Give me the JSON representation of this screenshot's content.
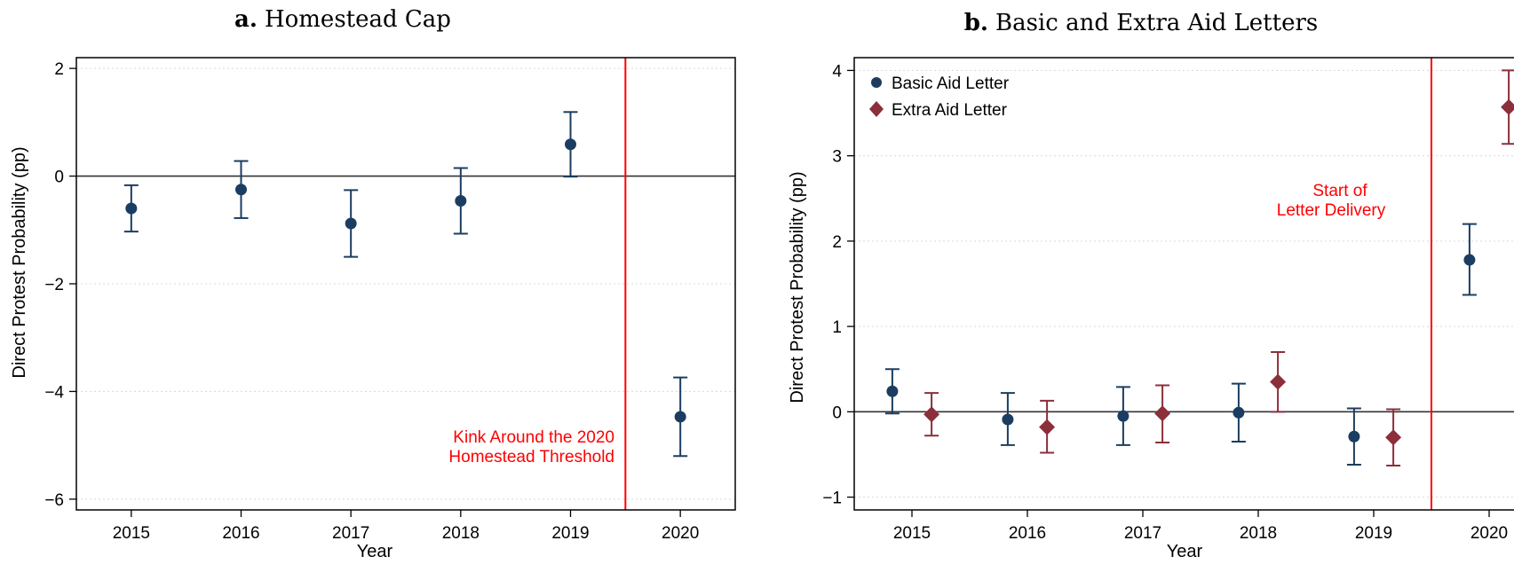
{
  "chart_data": [
    {
      "type": "scatter",
      "panel_letter": "a.",
      "title": "Homestead Cap",
      "xlabel": "Year",
      "ylabel": "Direct Protest Probability (pp)",
      "xlim": [
        2014.5,
        2020.5
      ],
      "ylim": [
        -6.2,
        2.2
      ],
      "xticks": [
        "2015",
        "2016",
        "2017",
        "2018",
        "2019",
        "2020"
      ],
      "yticks": [
        2,
        0,
        -2,
        -4,
        -6
      ],
      "ytick_labels": [
        "2",
        "0",
        "−2",
        "−4",
        "−6"
      ],
      "grid": true,
      "vline": 2019.5,
      "annotation": [
        "Kink Around the 2020",
        "Homestead Threshold"
      ],
      "series": [
        {
          "marker": "circle",
          "color": "#1b3d61",
          "points": [
            {
              "x": 2015,
              "y": -0.6,
              "lo": -1.03,
              "hi": -0.17
            },
            {
              "x": 2016,
              "y": -0.25,
              "lo": -0.78,
              "hi": 0.28
            },
            {
              "x": 2017,
              "y": -0.88,
              "lo": -1.5,
              "hi": -0.26
            },
            {
              "x": 2018,
              "y": -0.46,
              "lo": -1.07,
              "hi": 0.15
            },
            {
              "x": 2019,
              "y": 0.59,
              "lo": -0.01,
              "hi": 1.19
            },
            {
              "x": 2020,
              "y": -4.47,
              "lo": -5.2,
              "hi": -3.74
            }
          ]
        }
      ]
    },
    {
      "type": "scatter",
      "panel_letter": "b.",
      "title": "Basic and Extra Aid Letters",
      "xlabel": "Year",
      "ylabel": "Direct Protest Probability (pp)",
      "xlim": [
        2014.5,
        2020.5
      ],
      "ylim": [
        -1.15,
        4.15
      ],
      "xticks": [
        "2015",
        "2016",
        "2017",
        "2018",
        "2019",
        "2020"
      ],
      "yticks": [
        4,
        3,
        2,
        1,
        0,
        -1
      ],
      "ytick_labels": [
        "4",
        "3",
        "2",
        "1",
        "0",
        "−1"
      ],
      "grid": true,
      "vline": 2019.5,
      "annotation": [
        "Start of",
        "Letter Delivery"
      ],
      "legend_position": "top-left",
      "series": [
        {
          "name": "Basic Aid Letter",
          "marker": "circle",
          "color": "#1b3d61",
          "offset": -0.17,
          "points": [
            {
              "x": 2015,
              "y": 0.24,
              "lo": -0.02,
              "hi": 0.5
            },
            {
              "x": 2016,
              "y": -0.09,
              "lo": -0.39,
              "hi": 0.22
            },
            {
              "x": 2017,
              "y": -0.05,
              "lo": -0.39,
              "hi": 0.29
            },
            {
              "x": 2018,
              "y": -0.01,
              "lo": -0.35,
              "hi": 0.33
            },
            {
              "x": 2019,
              "y": -0.29,
              "lo": -0.62,
              "hi": 0.04
            },
            {
              "x": 2020,
              "y": 1.78,
              "lo": 1.37,
              "hi": 2.2
            }
          ]
        },
        {
          "name": "Extra Aid Letter",
          "marker": "diamond",
          "color": "#8b2f3a",
          "offset": 0.17,
          "points": [
            {
              "x": 2015,
              "y": -0.03,
              "lo": -0.28,
              "hi": 0.22
            },
            {
              "x": 2016,
              "y": -0.18,
              "lo": -0.48,
              "hi": 0.13
            },
            {
              "x": 2017,
              "y": -0.02,
              "lo": -0.36,
              "hi": 0.31
            },
            {
              "x": 2018,
              "y": 0.35,
              "lo": 0.0,
              "hi": 0.7
            },
            {
              "x": 2019,
              "y": -0.3,
              "lo": -0.63,
              "hi": 0.03
            },
            {
              "x": 2020,
              "y": 3.57,
              "lo": 3.14,
              "hi": 4.0
            }
          ]
        }
      ]
    }
  ]
}
